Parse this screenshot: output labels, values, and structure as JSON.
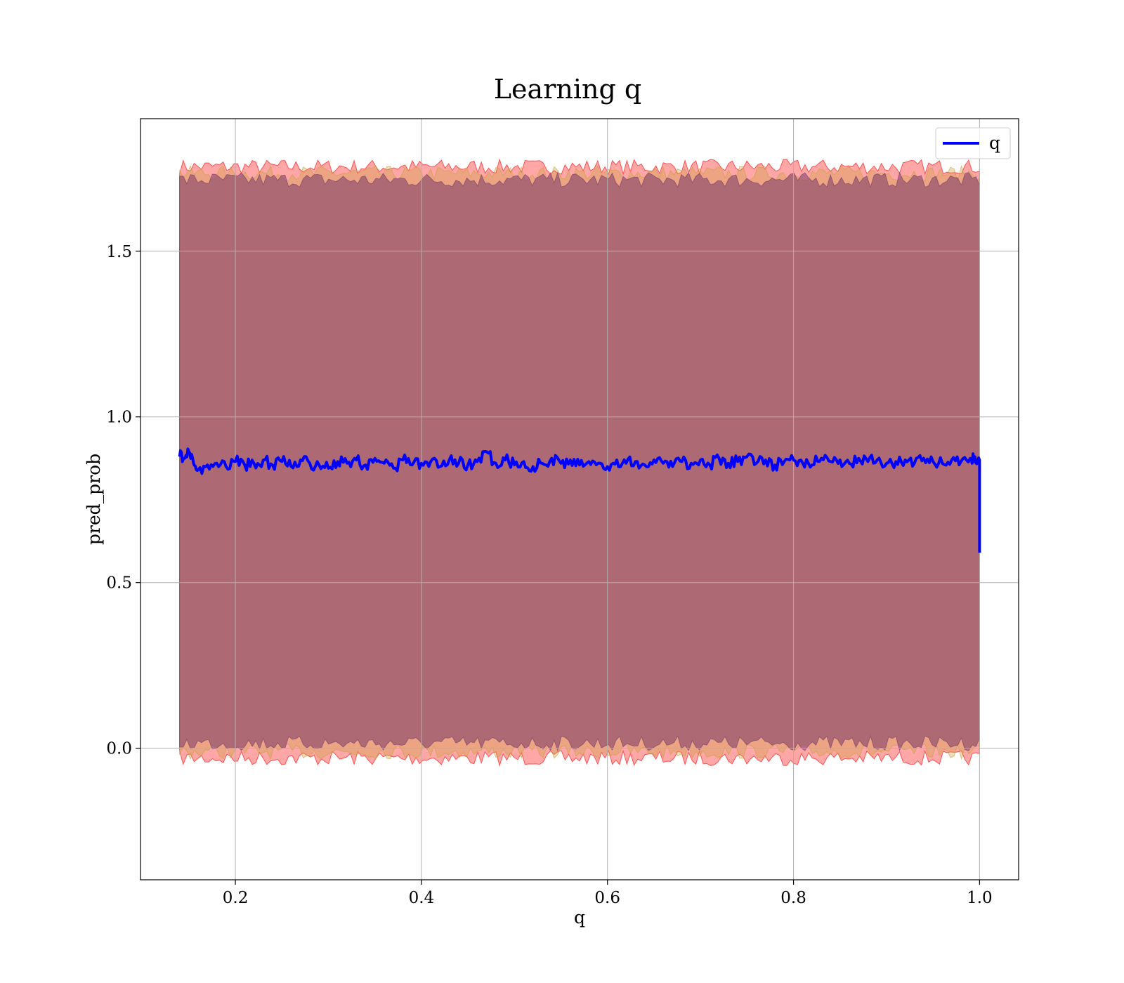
{
  "chart_data": {
    "type": "line",
    "title": "Learning q",
    "xlabel": "q",
    "ylabel": "pred_prob",
    "xlim": [
      0.098,
      1.042
    ],
    "ylim": [
      -0.397,
      1.9
    ],
    "x_ticks": [
      0.2,
      0.4,
      0.6,
      0.8,
      1.0
    ],
    "x_tick_labels": [
      "0.2",
      "0.4",
      "0.6",
      "0.8",
      "1.0"
    ],
    "y_ticks": [
      0.0,
      0.5,
      1.0,
      1.5
    ],
    "y_tick_labels": [
      "0.0",
      "0.5",
      "1.0",
      "1.5"
    ],
    "grid": true,
    "legend": {
      "placement": "top-right",
      "entries": [
        "q"
      ]
    },
    "series": [
      {
        "name": "q",
        "color": "#0000ff",
        "x": [
          0.14,
          0.145,
          0.15,
          0.155,
          0.16,
          0.17,
          0.18,
          0.19,
          0.2,
          0.21,
          0.22,
          0.23,
          0.24,
          0.25,
          0.26,
          0.27,
          0.28,
          0.29,
          0.3,
          0.31,
          0.32,
          0.33,
          0.34,
          0.35,
          0.36,
          0.37,
          0.38,
          0.39,
          0.4,
          0.41,
          0.42,
          0.43,
          0.44,
          0.45,
          0.46,
          0.47,
          0.48,
          0.49,
          0.5,
          0.51,
          0.52,
          0.53,
          0.54,
          0.55,
          0.56,
          0.57,
          0.58,
          0.59,
          0.6,
          0.61,
          0.62,
          0.63,
          0.64,
          0.65,
          0.66,
          0.67,
          0.68,
          0.69,
          0.7,
          0.71,
          0.72,
          0.73,
          0.74,
          0.75,
          0.76,
          0.77,
          0.78,
          0.79,
          0.8,
          0.81,
          0.82,
          0.83,
          0.84,
          0.85,
          0.86,
          0.87,
          0.88,
          0.89,
          0.9,
          0.91,
          0.92,
          0.93,
          0.94,
          0.95,
          0.96,
          0.97,
          0.98,
          0.99,
          0.995,
          1.0,
          1.0
        ],
        "y": [
          0.88,
          0.875,
          0.895,
          0.86,
          0.84,
          0.855,
          0.86,
          0.85,
          0.865,
          0.855,
          0.86,
          0.87,
          0.855,
          0.865,
          0.85,
          0.87,
          0.86,
          0.855,
          0.845,
          0.865,
          0.86,
          0.87,
          0.855,
          0.875,
          0.86,
          0.845,
          0.87,
          0.855,
          0.86,
          0.865,
          0.85,
          0.87,
          0.86,
          0.855,
          0.865,
          0.895,
          0.86,
          0.87,
          0.855,
          0.865,
          0.85,
          0.86,
          0.875,
          0.86,
          0.87,
          0.855,
          0.865,
          0.86,
          0.85,
          0.87,
          0.86,
          0.865,
          0.855,
          0.87,
          0.86,
          0.85,
          0.865,
          0.86,
          0.87,
          0.855,
          0.875,
          0.86,
          0.865,
          0.88,
          0.86,
          0.87,
          0.855,
          0.865,
          0.87,
          0.86,
          0.855,
          0.875,
          0.865,
          0.87,
          0.86,
          0.875,
          0.865,
          0.87,
          0.86,
          0.865,
          0.87,
          0.86,
          0.875,
          0.865,
          0.86,
          0.87,
          0.865,
          0.875,
          0.88,
          0.87,
          0.59
        ]
      }
    ],
    "bands": [
      {
        "color": "#ff0000",
        "opacity": 0.35,
        "x_range": [
          0.14,
          1.0
        ],
        "lower": -0.03,
        "upper": 1.755
      },
      {
        "color": "#c8a040",
        "opacity": 0.35,
        "x_range": [
          0.14,
          1.0
        ],
        "lower": -0.01,
        "upper": 1.735
      },
      {
        "color": "#7a3a6a",
        "opacity": 0.55,
        "x_range": [
          0.14,
          1.0
        ],
        "lower": 0.015,
        "upper": 1.715
      }
    ]
  }
}
